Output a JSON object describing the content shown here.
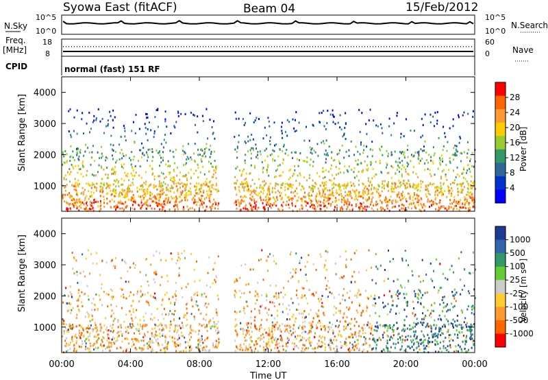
{
  "header": {
    "station": "Syowa East (fitACF)",
    "beam": "Beam 04",
    "date": "15/Feb/2012"
  },
  "noise_panel": {
    "left_label": "N.Sky",
    "right_label": "N.Search",
    "y_ticks_left": [
      "10^5",
      "10^0"
    ],
    "y_ticks_right": [
      "10^5",
      "10^0"
    ]
  },
  "freq_panel": {
    "left_label_1": "Freq.",
    "left_label_2": "[MHz]",
    "right_label": "Nave",
    "y_ticks_left": [
      "18",
      "8"
    ],
    "y_ticks_right": [
      "60",
      "0"
    ]
  },
  "cpid": {
    "label": "CPID",
    "text": "normal (fast) 151 RF"
  },
  "power_colorbar": {
    "label": "Power [dB]",
    "ticks": [
      "28",
      "24",
      "20",
      "16",
      "12",
      "8",
      "4"
    ],
    "colors": [
      "#ff0000",
      "#ff6600",
      "#ff9933",
      "#ffcc00",
      "#99cc33",
      "#339966",
      "#336699",
      "#0033cc",
      "#0000ff"
    ]
  },
  "velocity_colorbar": {
    "label": "Velocity [m s⁻¹]",
    "ticks": [
      "1000",
      "500",
      "100",
      "25",
      "-25",
      "-100",
      "-500",
      "-1000"
    ],
    "colors": [
      "#1f3a93",
      "#3366aa",
      "#339966",
      "#66cc33",
      "#cccccc",
      "#ffcc33",
      "#ff9933",
      "#ff6600",
      "#ff0000"
    ]
  },
  "x_axis": {
    "label": "Time UT",
    "ticks": [
      "00:00",
      "04:00",
      "08:00",
      "12:00",
      "16:00",
      "20:00",
      "00:00"
    ]
  },
  "chart_data": [
    {
      "type": "heatmap",
      "title": "Power",
      "xlabel": "Time UT",
      "ylabel": "Slant Range [km]",
      "x_range_hours": [
        0,
        24
      ],
      "ylim": [
        180,
        4500
      ],
      "y_ticks": [
        1000,
        2000,
        3000,
        4000
      ],
      "x_ticks": [
        "00:00",
        "04:00",
        "08:00",
        "12:00",
        "16:00",
        "20:00",
        "00:00"
      ],
      "colorbar": {
        "label": "Power [dB]",
        "range": [
          0,
          30
        ],
        "ticks": [
          4,
          8,
          12,
          16,
          20,
          24,
          28
        ]
      },
      "data_gap_hours": [
        9.1,
        10.0
      ]
    },
    {
      "type": "heatmap",
      "title": "Velocity",
      "xlabel": "Time UT",
      "ylabel": "Slant Range [km]",
      "x_range_hours": [
        0,
        24
      ],
      "ylim": [
        180,
        4500
      ],
      "y_ticks": [
        1000,
        2000,
        3000,
        4000
      ],
      "x_ticks": [
        "00:00",
        "04:00",
        "08:00",
        "12:00",
        "16:00",
        "20:00",
        "00:00"
      ],
      "colorbar": {
        "label": "Velocity [m s^-1]",
        "ticks": [
          1000,
          500,
          100,
          25,
          -25,
          -100,
          -500,
          -1000
        ]
      },
      "data_gap_hours": [
        9.1,
        10.0
      ]
    }
  ]
}
